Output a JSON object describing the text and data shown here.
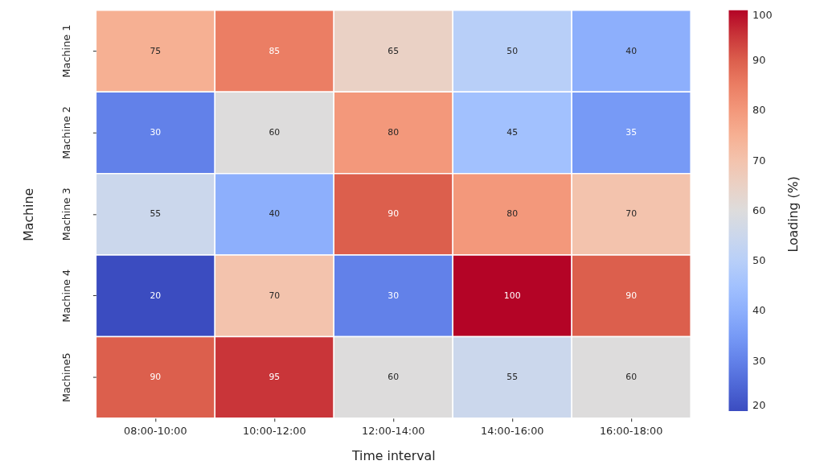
{
  "chart_data": {
    "type": "heatmap",
    "xlabel": "Time interval",
    "ylabel": "Machine",
    "clabel": "Loading (%)",
    "categories": [
      "08:00-10:00",
      "10:00-12:00",
      "12:00-14:00",
      "14:00-16:00",
      "16:00-18:00"
    ],
    "y_categories": [
      "Machine 1",
      "Machine 2",
      "Machine 3",
      "Machine 4",
      "Machine5"
    ],
    "cells": [
      [
        75,
        85,
        65,
        50,
        40
      ],
      [
        30,
        60,
        80,
        45,
        35
      ],
      [
        55,
        40,
        90,
        80,
        70
      ],
      [
        20,
        70,
        30,
        100,
        90
      ],
      [
        90,
        95,
        60,
        55,
        60
      ]
    ],
    "clim": [
      20,
      100
    ],
    "cticks": [
      20,
      30,
      40,
      50,
      60,
      70,
      80,
      90,
      100
    ],
    "data_labels": true
  }
}
